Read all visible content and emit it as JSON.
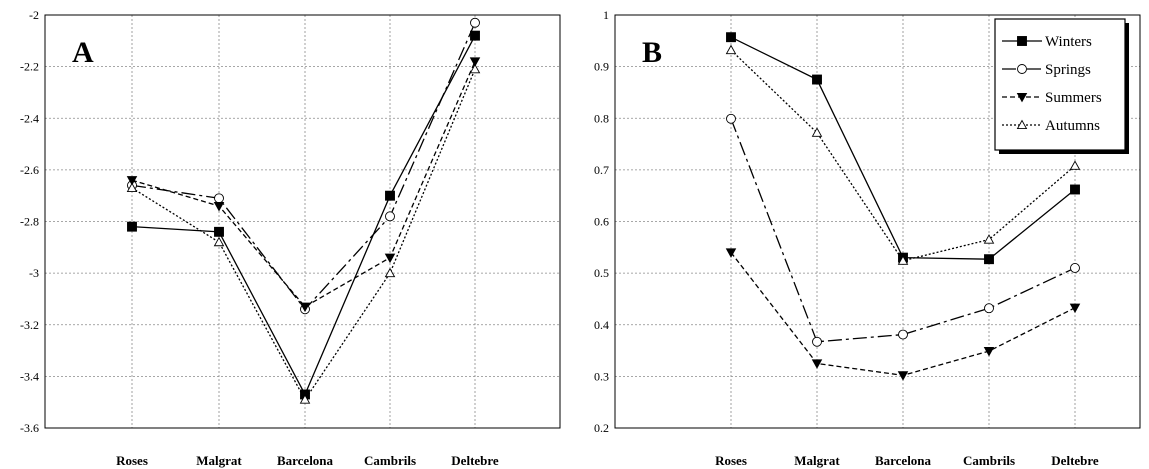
{
  "chart_data": [
    {
      "type": "line",
      "panel_label": "A",
      "categories": [
        "Roses",
        "Malgrat",
        "Barcelona",
        "Cambrils",
        "Deltebre"
      ],
      "ylim": [
        -3.6,
        -2
      ],
      "yticks": [
        "-2",
        "-2.2",
        "-2.4",
        "-2.6",
        "-2.8",
        "-3",
        "-3.2",
        "-3.4",
        "-3.6"
      ],
      "grid": true,
      "series": [
        {
          "values": [
            -2.82,
            -2.84,
            -3.47,
            -2.7,
            -2.08
          ]
        },
        {
          "values": [
            -2.66,
            -2.71,
            -3.14,
            -2.78,
            -2.03
          ]
        },
        {
          "values": [
            -2.64,
            -2.74,
            -3.13,
            -2.94,
            -2.18
          ]
        },
        {
          "values": [
            -2.67,
            -2.88,
            -3.49,
            -3.0,
            -2.21
          ]
        }
      ]
    },
    {
      "type": "line",
      "panel_label": "B",
      "categories": [
        "Roses",
        "Malgrat",
        "Barcelona",
        "Cambrils",
        "Deltebre"
      ],
      "ylim": [
        0.2,
        1
      ],
      "yticks": [
        "1",
        "0.9",
        "0.8",
        "0.7",
        "0.6",
        "0.5",
        "0.4",
        "0.3",
        "0.2"
      ],
      "grid": true,
      "legend_position": "top-right",
      "series": [
        {
          "name": "Winters",
          "values": [
            0.957,
            0.875,
            0.53,
            0.527,
            0.662
          ]
        },
        {
          "name": "Springs",
          "values": [
            0.799,
            0.367,
            0.381,
            0.432,
            0.51
          ]
        },
        {
          "name": "Summers",
          "values": [
            0.54,
            0.325,
            0.302,
            0.349,
            0.433
          ]
        },
        {
          "name": "Autumns",
          "values": [
            0.932,
            0.772,
            0.524,
            0.565,
            0.708
          ]
        }
      ]
    }
  ],
  "series_styles": [
    {
      "line": "solid",
      "marker": "square",
      "marker_fill": "#000000"
    },
    {
      "line": "dashdot",
      "marker": "circle",
      "marker_fill": "#ffffff"
    },
    {
      "line": "dashed",
      "marker": "triangle-down",
      "marker_fill": "#000000"
    },
    {
      "line": "dotted",
      "marker": "triangle-up",
      "marker_fill": "#ffffff"
    }
  ]
}
